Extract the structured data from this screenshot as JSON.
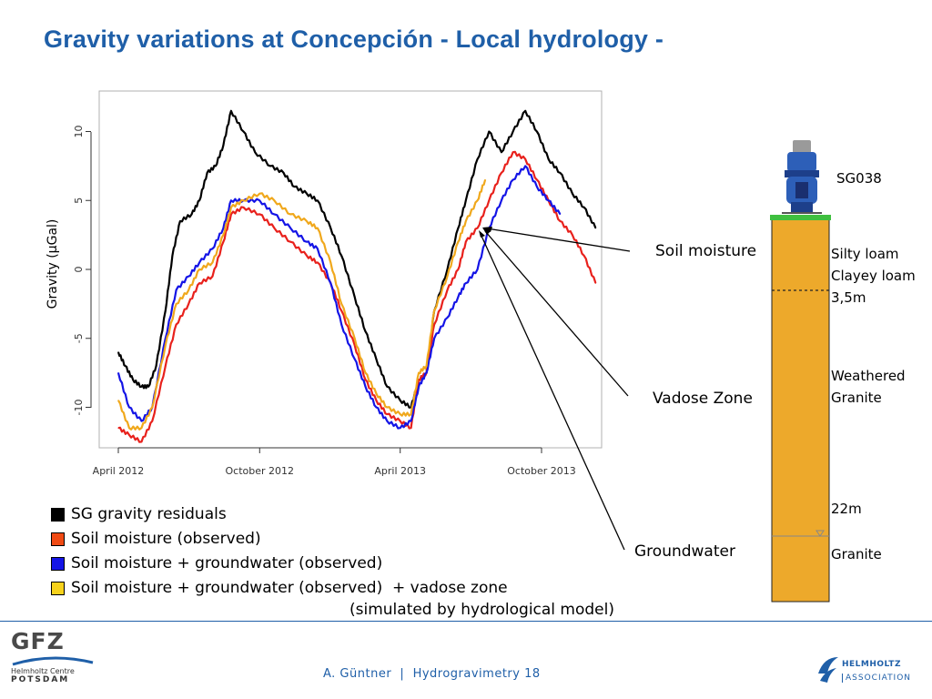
{
  "slide": {
    "title": "Gravity variations at Concepción - Local hydrology -"
  },
  "chart_data": {
    "type": "line",
    "ylabel": "Gravity (µGal)",
    "xlabel": "",
    "ylim": [
      -13,
      13
    ],
    "yticks": [
      10,
      5,
      0,
      -5,
      -10
    ],
    "xlim": [
      "2012-04-01",
      "2014-01-05"
    ],
    "xticks": [
      {
        "x": "2012-04-01",
        "label": "April 2012"
      },
      {
        "x": "2012-10-01",
        "label": "October 2012"
      },
      {
        "x": "2013-04-01",
        "label": "April 2013"
      },
      {
        "x": "2013-10-01",
        "label": "October 2013"
      }
    ],
    "series": [
      {
        "name": "SG gravity residuals",
        "color": "#000000",
        "points": [
          [
            "2012-04-01",
            -6
          ],
          [
            "2012-04-10",
            -7
          ],
          [
            "2012-04-20",
            -8
          ],
          [
            "2012-05-01",
            -8.5
          ],
          [
            "2012-05-10",
            -8.5
          ],
          [
            "2012-05-20",
            -7
          ],
          [
            "2012-06-01",
            -3
          ],
          [
            "2012-06-10",
            1
          ],
          [
            "2012-06-20",
            3.5
          ],
          [
            "2012-07-05",
            4
          ],
          [
            "2012-07-15",
            5
          ],
          [
            "2012-07-25",
            7
          ],
          [
            "2012-08-05",
            7.5
          ],
          [
            "2012-08-15",
            9
          ],
          [
            "2012-08-25",
            11.5
          ],
          [
            "2012-09-10",
            10
          ],
          [
            "2012-09-25",
            8.5
          ],
          [
            "2012-10-15",
            7.5
          ],
          [
            "2012-11-01",
            7
          ],
          [
            "2012-11-15",
            6
          ],
          [
            "2012-12-01",
            5.5
          ],
          [
            "2012-12-15",
            5
          ],
          [
            "2013-01-01",
            3
          ],
          [
            "2013-01-15",
            1
          ],
          [
            "2013-02-01",
            -2
          ],
          [
            "2013-02-15",
            -4.5
          ],
          [
            "2013-03-01",
            -6.5
          ],
          [
            "2013-03-15",
            -8.5
          ],
          [
            "2013-04-01",
            -9.5
          ],
          [
            "2013-04-15",
            -10
          ],
          [
            "2013-04-25",
            -8
          ],
          [
            "2013-05-05",
            -7.5
          ],
          [
            "2013-05-15",
            -3
          ],
          [
            "2013-06-01",
            0
          ],
          [
            "2013-06-15",
            3
          ],
          [
            "2013-06-25",
            5
          ],
          [
            "2013-07-10",
            8
          ],
          [
            "2013-07-25",
            10
          ],
          [
            "2013-08-10",
            8.5
          ],
          [
            "2013-08-25",
            10
          ],
          [
            "2013-09-10",
            11.5
          ],
          [
            "2013-09-25",
            10
          ],
          [
            "2013-10-10",
            8
          ],
          [
            "2013-10-25",
            7
          ],
          [
            "2013-11-10",
            5.5
          ],
          [
            "2013-11-25",
            4.5
          ],
          [
            "2013-12-10",
            3
          ]
        ]
      },
      {
        "name": "Soil moisture (observed)",
        "color": "#e8211c",
        "points": [
          [
            "2012-04-01",
            -11.5
          ],
          [
            "2012-04-15",
            -12
          ],
          [
            "2012-05-01",
            -12.5
          ],
          [
            "2012-05-15",
            -11
          ],
          [
            "2012-06-01",
            -7
          ],
          [
            "2012-06-15",
            -4
          ],
          [
            "2012-07-01",
            -2.5
          ],
          [
            "2012-07-15",
            -1
          ],
          [
            "2012-08-01",
            -0.5
          ],
          [
            "2012-08-15",
            2
          ],
          [
            "2012-08-25",
            4
          ],
          [
            "2012-09-10",
            4.5
          ],
          [
            "2012-10-01",
            4
          ],
          [
            "2012-10-20",
            3
          ],
          [
            "2012-11-10",
            2
          ],
          [
            "2012-12-01",
            1
          ],
          [
            "2012-12-15",
            0.5
          ],
          [
            "2013-01-01",
            -1
          ],
          [
            "2013-01-15",
            -3
          ],
          [
            "2013-02-01",
            -5.5
          ],
          [
            "2013-02-15",
            -8
          ],
          [
            "2013-03-01",
            -9.5
          ],
          [
            "2013-03-15",
            -10.5
          ],
          [
            "2013-04-01",
            -11
          ],
          [
            "2013-04-15",
            -11.5
          ],
          [
            "2013-04-25",
            -8
          ],
          [
            "2013-05-05",
            -7.5
          ],
          [
            "2013-05-15",
            -4
          ],
          [
            "2013-06-01",
            -1.5
          ],
          [
            "2013-06-15",
            0
          ],
          [
            "2013-06-25",
            2
          ],
          [
            "2013-07-10",
            3
          ],
          [
            "2013-07-25",
            5
          ],
          [
            "2013-08-10",
            7
          ],
          [
            "2013-08-25",
            8.5
          ],
          [
            "2013-09-10",
            8
          ],
          [
            "2013-09-25",
            6.5
          ],
          [
            "2013-10-10",
            5
          ],
          [
            "2013-10-25",
            3.5
          ],
          [
            "2013-11-10",
            2.5
          ],
          [
            "2013-11-25",
            1
          ],
          [
            "2013-12-10",
            -1
          ]
        ]
      },
      {
        "name": "Soil moisture + groundwater (observed)",
        "color": "#1414e6",
        "points": [
          [
            "2012-04-01",
            -7.5
          ],
          [
            "2012-04-15",
            -10
          ],
          [
            "2012-05-01",
            -11
          ],
          [
            "2012-05-15",
            -10
          ],
          [
            "2012-06-01",
            -5
          ],
          [
            "2012-06-15",
            -1.5
          ],
          [
            "2012-07-01",
            -0.5
          ],
          [
            "2012-07-15",
            0.5
          ],
          [
            "2012-08-01",
            1.5
          ],
          [
            "2012-08-15",
            3
          ],
          [
            "2012-08-25",
            5
          ],
          [
            "2012-09-10",
            5
          ],
          [
            "2012-10-01",
            5
          ],
          [
            "2012-10-20",
            4
          ],
          [
            "2012-11-10",
            3
          ],
          [
            "2012-12-01",
            2
          ],
          [
            "2012-12-15",
            1.5
          ],
          [
            "2013-01-01",
            -1
          ],
          [
            "2013-01-15",
            -4
          ],
          [
            "2013-02-01",
            -6.5
          ],
          [
            "2013-02-15",
            -8.5
          ],
          [
            "2013-03-01",
            -10
          ],
          [
            "2013-03-15",
            -11
          ],
          [
            "2013-04-01",
            -11.5
          ],
          [
            "2013-04-15",
            -11
          ],
          [
            "2013-04-25",
            -8.5
          ],
          [
            "2013-05-05",
            -7.5
          ],
          [
            "2013-05-15",
            -5
          ],
          [
            "2013-06-01",
            -3.5
          ],
          [
            "2013-06-15",
            -2
          ],
          [
            "2013-06-25",
            -1
          ],
          [
            "2013-07-10",
            0
          ],
          [
            "2013-07-25",
            3
          ],
          [
            "2013-08-10",
            5
          ],
          [
            "2013-08-25",
            6.5
          ],
          [
            "2013-09-10",
            7.5
          ],
          [
            "2013-09-25",
            6
          ],
          [
            "2013-10-10",
            5
          ],
          [
            "2013-10-25",
            4
          ]
        ]
      },
      {
        "name": "Soil moisture + groundwater (observed)  + vadose zone",
        "color": "#f0a81c",
        "points": [
          [
            "2012-04-01",
            -9.5
          ],
          [
            "2012-04-15",
            -11.5
          ],
          [
            "2012-05-01",
            -11.5
          ],
          [
            "2012-05-15",
            -10
          ],
          [
            "2012-06-01",
            -5.5
          ],
          [
            "2012-06-15",
            -2.5
          ],
          [
            "2012-07-01",
            -1.5
          ],
          [
            "2012-07-15",
            0
          ],
          [
            "2012-08-01",
            0.5
          ],
          [
            "2012-08-15",
            2.5
          ],
          [
            "2012-08-25",
            4.5
          ],
          [
            "2012-09-10",
            5
          ],
          [
            "2012-10-01",
            5.5
          ],
          [
            "2012-10-20",
            5
          ],
          [
            "2012-11-10",
            4
          ],
          [
            "2012-12-01",
            3.5
          ],
          [
            "2012-12-15",
            3
          ],
          [
            "2013-01-01",
            0.5
          ],
          [
            "2013-01-15",
            -2.5
          ],
          [
            "2013-02-01",
            -5
          ],
          [
            "2013-02-15",
            -7.5
          ],
          [
            "2013-03-01",
            -9
          ],
          [
            "2013-03-15",
            -10
          ],
          [
            "2013-04-01",
            -10.5
          ],
          [
            "2013-04-15",
            -10.5
          ],
          [
            "2013-04-25",
            -7.5
          ],
          [
            "2013-05-05",
            -7
          ],
          [
            "2013-05-15",
            -3
          ],
          [
            "2013-06-01",
            -0.5
          ],
          [
            "2013-06-15",
            2
          ],
          [
            "2013-06-25",
            3.5
          ],
          [
            "2013-07-10",
            5
          ],
          [
            "2013-07-20",
            6.5
          ]
        ]
      }
    ]
  },
  "legend": {
    "items": [
      {
        "label": "SG gravity residuals",
        "color": "#000000"
      },
      {
        "label": "Soil moisture (observed)",
        "color": "#f04a14"
      },
      {
        "label": "Soil moisture + groundwater (observed)",
        "color": "#1414e6"
      },
      {
        "label": "Soil moisture + groundwater (observed)  + vadose zone",
        "color": "#f7d21c"
      }
    ],
    "note": "(simulated by hydrological model)"
  },
  "callouts": {
    "soil_moisture": "Soil moisture",
    "vadose_zone": "Vadose Zone",
    "groundwater": "Groundwater"
  },
  "profile": {
    "instrument": "SG038",
    "layer1": [
      "Silty loam",
      "Clayey loam",
      "3,5m"
    ],
    "layer2": [
      "Weathered",
      "Granite"
    ],
    "depth2": "22m",
    "layer3": "Granite",
    "colors": {
      "soil": "#eda92b",
      "grass": "#3fbf3f"
    }
  },
  "footer": {
    "gfz_logo": "GFZ",
    "gfz_line1": "Helmholtz Centre",
    "gfz_line2": "POTSDAM",
    "credit": "A. Güntner  |  Hydrogravimetry 18",
    "helmholtz_line1": "HELMHOLTZ",
    "helmholtz_line2": "ASSOCIATION"
  }
}
